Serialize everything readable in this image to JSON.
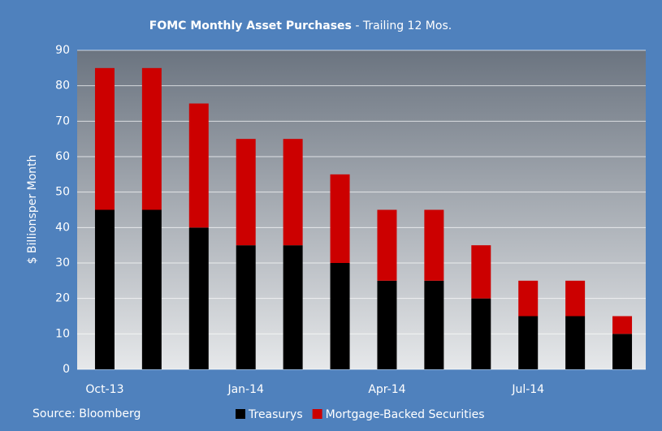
{
  "chart_data": {
    "type": "stacked_bar",
    "title": "FOMC Monthly Asset Purchases",
    "subtitle": "- Trailing 12 Mos.",
    "y_label": "$ Billionsper Month",
    "source": "Source: Bloomberg",
    "categories": [
      "Oct-13",
      null,
      null,
      "Jan-14",
      null,
      null,
      "Apr-14",
      null,
      null,
      "Jul-14",
      null,
      null
    ],
    "series": [
      {
        "name": "Treasurys",
        "color": "#000000",
        "values": [
          45,
          45,
          40,
          35,
          35,
          30,
          25,
          25,
          20,
          15,
          15,
          10
        ]
      },
      {
        "name": "Mortgage-Backed Securities",
        "color": "#cc0000",
        "values": [
          40,
          40,
          35,
          30,
          30,
          25,
          20,
          20,
          15,
          10,
          10,
          5
        ]
      }
    ],
    "ylim": [
      0,
      90
    ],
    "yticks": [
      0,
      10,
      20,
      30,
      40,
      50,
      60,
      70,
      80,
      90
    ],
    "grid": true
  }
}
